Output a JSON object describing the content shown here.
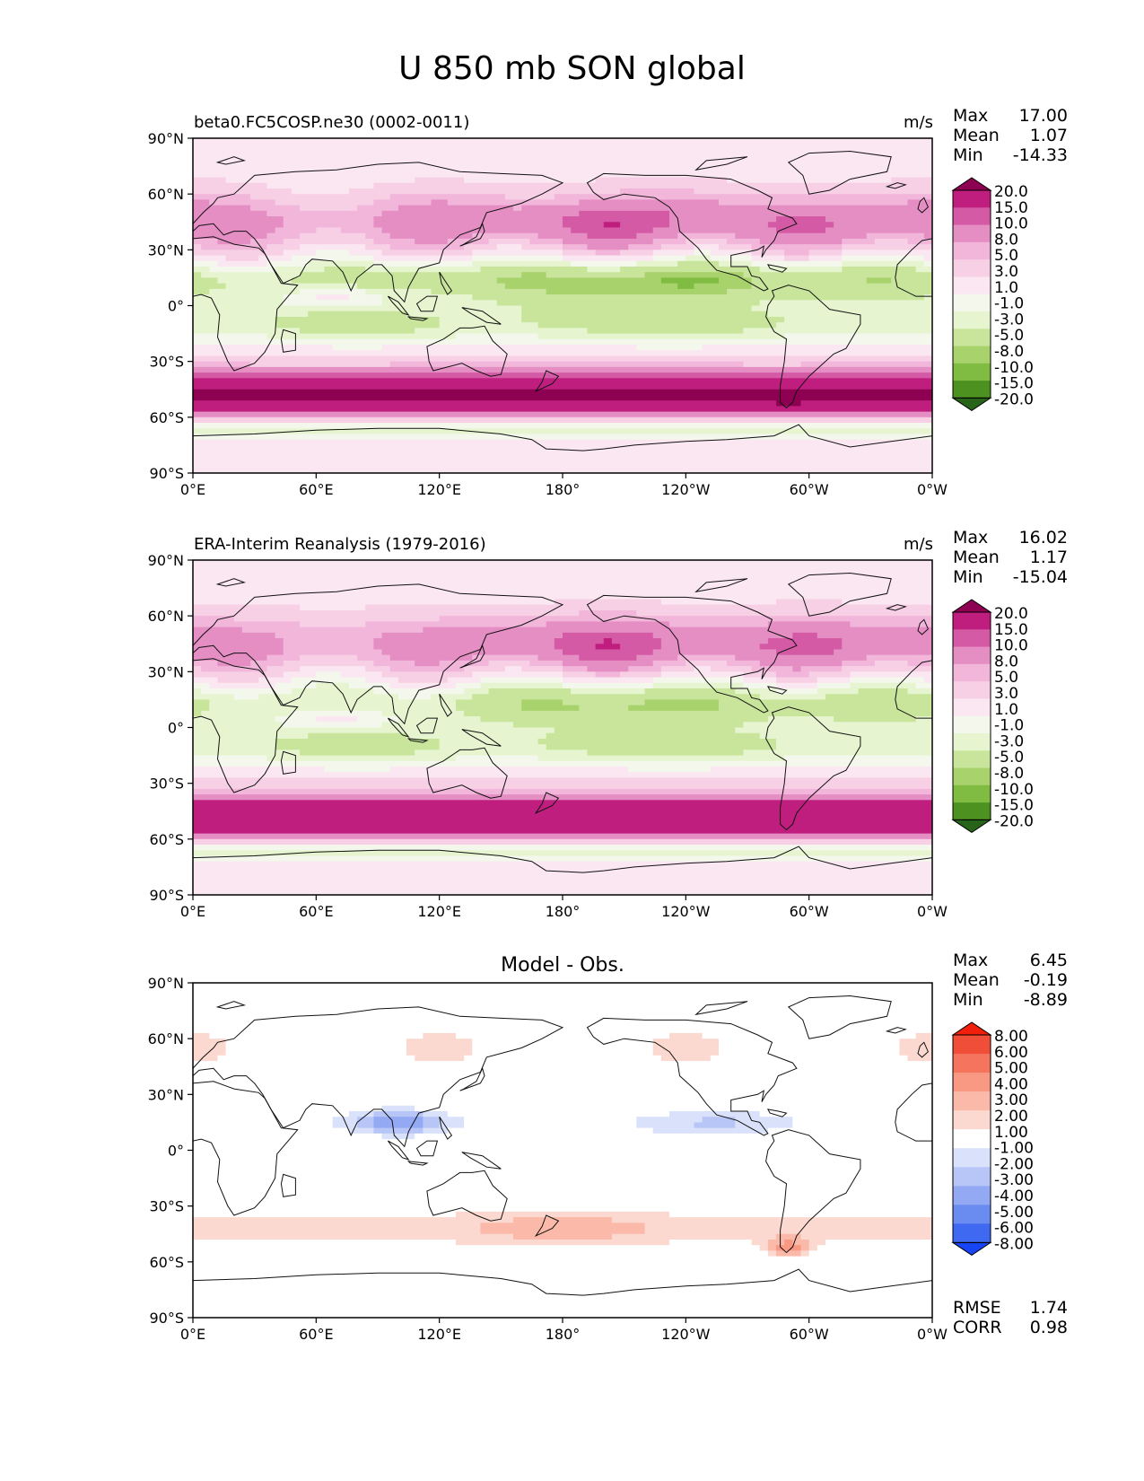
{
  "figure": {
    "title": "U 850 mb SON global"
  },
  "colors": {
    "piyg": [
      "#276419",
      "#4d9221",
      "#7fbc41",
      "#a7d26c",
      "#c8e59b",
      "#e6f5d0",
      "#f3f7ec",
      "#fbe7f1",
      "#f7d0e6",
      "#f1b6da",
      "#e58ec4",
      "#d55aa6",
      "#bf1e7e",
      "#8e0152"
    ],
    "bwr": [
      "#1744f5",
      "#3e69f0",
      "#6a8bf0",
      "#93a9f3",
      "#b7c6f6",
      "#d9e2fa",
      "#ffffff",
      "#fcd9d0",
      "#fbb9a9",
      "#f99883",
      "#f5745d",
      "#f04e39",
      "#f21f0d"
    ]
  },
  "xticks": [
    "0°E",
    "60°E",
    "120°E",
    "180°",
    "120°W",
    "60°W",
    "0°W"
  ],
  "yticks": [
    "90°N",
    "60°N",
    "30°N",
    "0°",
    "30°S",
    "60°S",
    "90°S"
  ],
  "panels": [
    {
      "left_title": "beta0.FC5COSP.ne30 (0002-0011)",
      "center_title": "",
      "units": "m/s",
      "stats": [
        {
          "label": "Max",
          "value": "17.00"
        },
        {
          "label": "Mean",
          "value": "1.07"
        },
        {
          "label": "Min",
          "value": "-14.33"
        }
      ],
      "colorbar_labels": [
        "20.0",
        "15.0",
        "10.0",
        "8.0",
        "5.0",
        "3.0",
        "1.0",
        "-1.0",
        "-3.0",
        "-5.0",
        "-8.0",
        "-10.0",
        "-15.0",
        "-20.0"
      ],
      "palette": "piyg",
      "field": "model"
    },
    {
      "left_title": "ERA-Interim Reanalysis (1979-2016)",
      "center_title": "",
      "units": "m/s",
      "stats": [
        {
          "label": "Max",
          "value": "16.02"
        },
        {
          "label": "Mean",
          "value": "1.17"
        },
        {
          "label": "Min",
          "value": "-15.04"
        }
      ],
      "colorbar_labels": [
        "20.0",
        "15.0",
        "10.0",
        "8.0",
        "5.0",
        "3.0",
        "1.0",
        "-1.0",
        "-3.0",
        "-5.0",
        "-8.0",
        "-10.0",
        "-15.0",
        "-20.0"
      ],
      "palette": "piyg",
      "field": "obs"
    },
    {
      "left_title": "",
      "center_title": "Model - Obs.",
      "units": "",
      "stats": [
        {
          "label": "Max",
          "value": "6.45"
        },
        {
          "label": "Mean",
          "value": "-0.19"
        },
        {
          "label": "Min",
          "value": "-8.89"
        }
      ],
      "colorbar_labels": [
        "8.00",
        "6.00",
        "5.00",
        "4.00",
        "3.00",
        "2.00",
        "1.00",
        "-1.00",
        "-2.00",
        "-3.00",
        "-4.00",
        "-5.00",
        "-6.00",
        "-8.00"
      ],
      "palette": "bwr",
      "field": "diff",
      "extra_stats": [
        {
          "label": "RMSE",
          "value": "1.74"
        },
        {
          "label": "CORR",
          "value": "0.98"
        }
      ]
    }
  ]
}
